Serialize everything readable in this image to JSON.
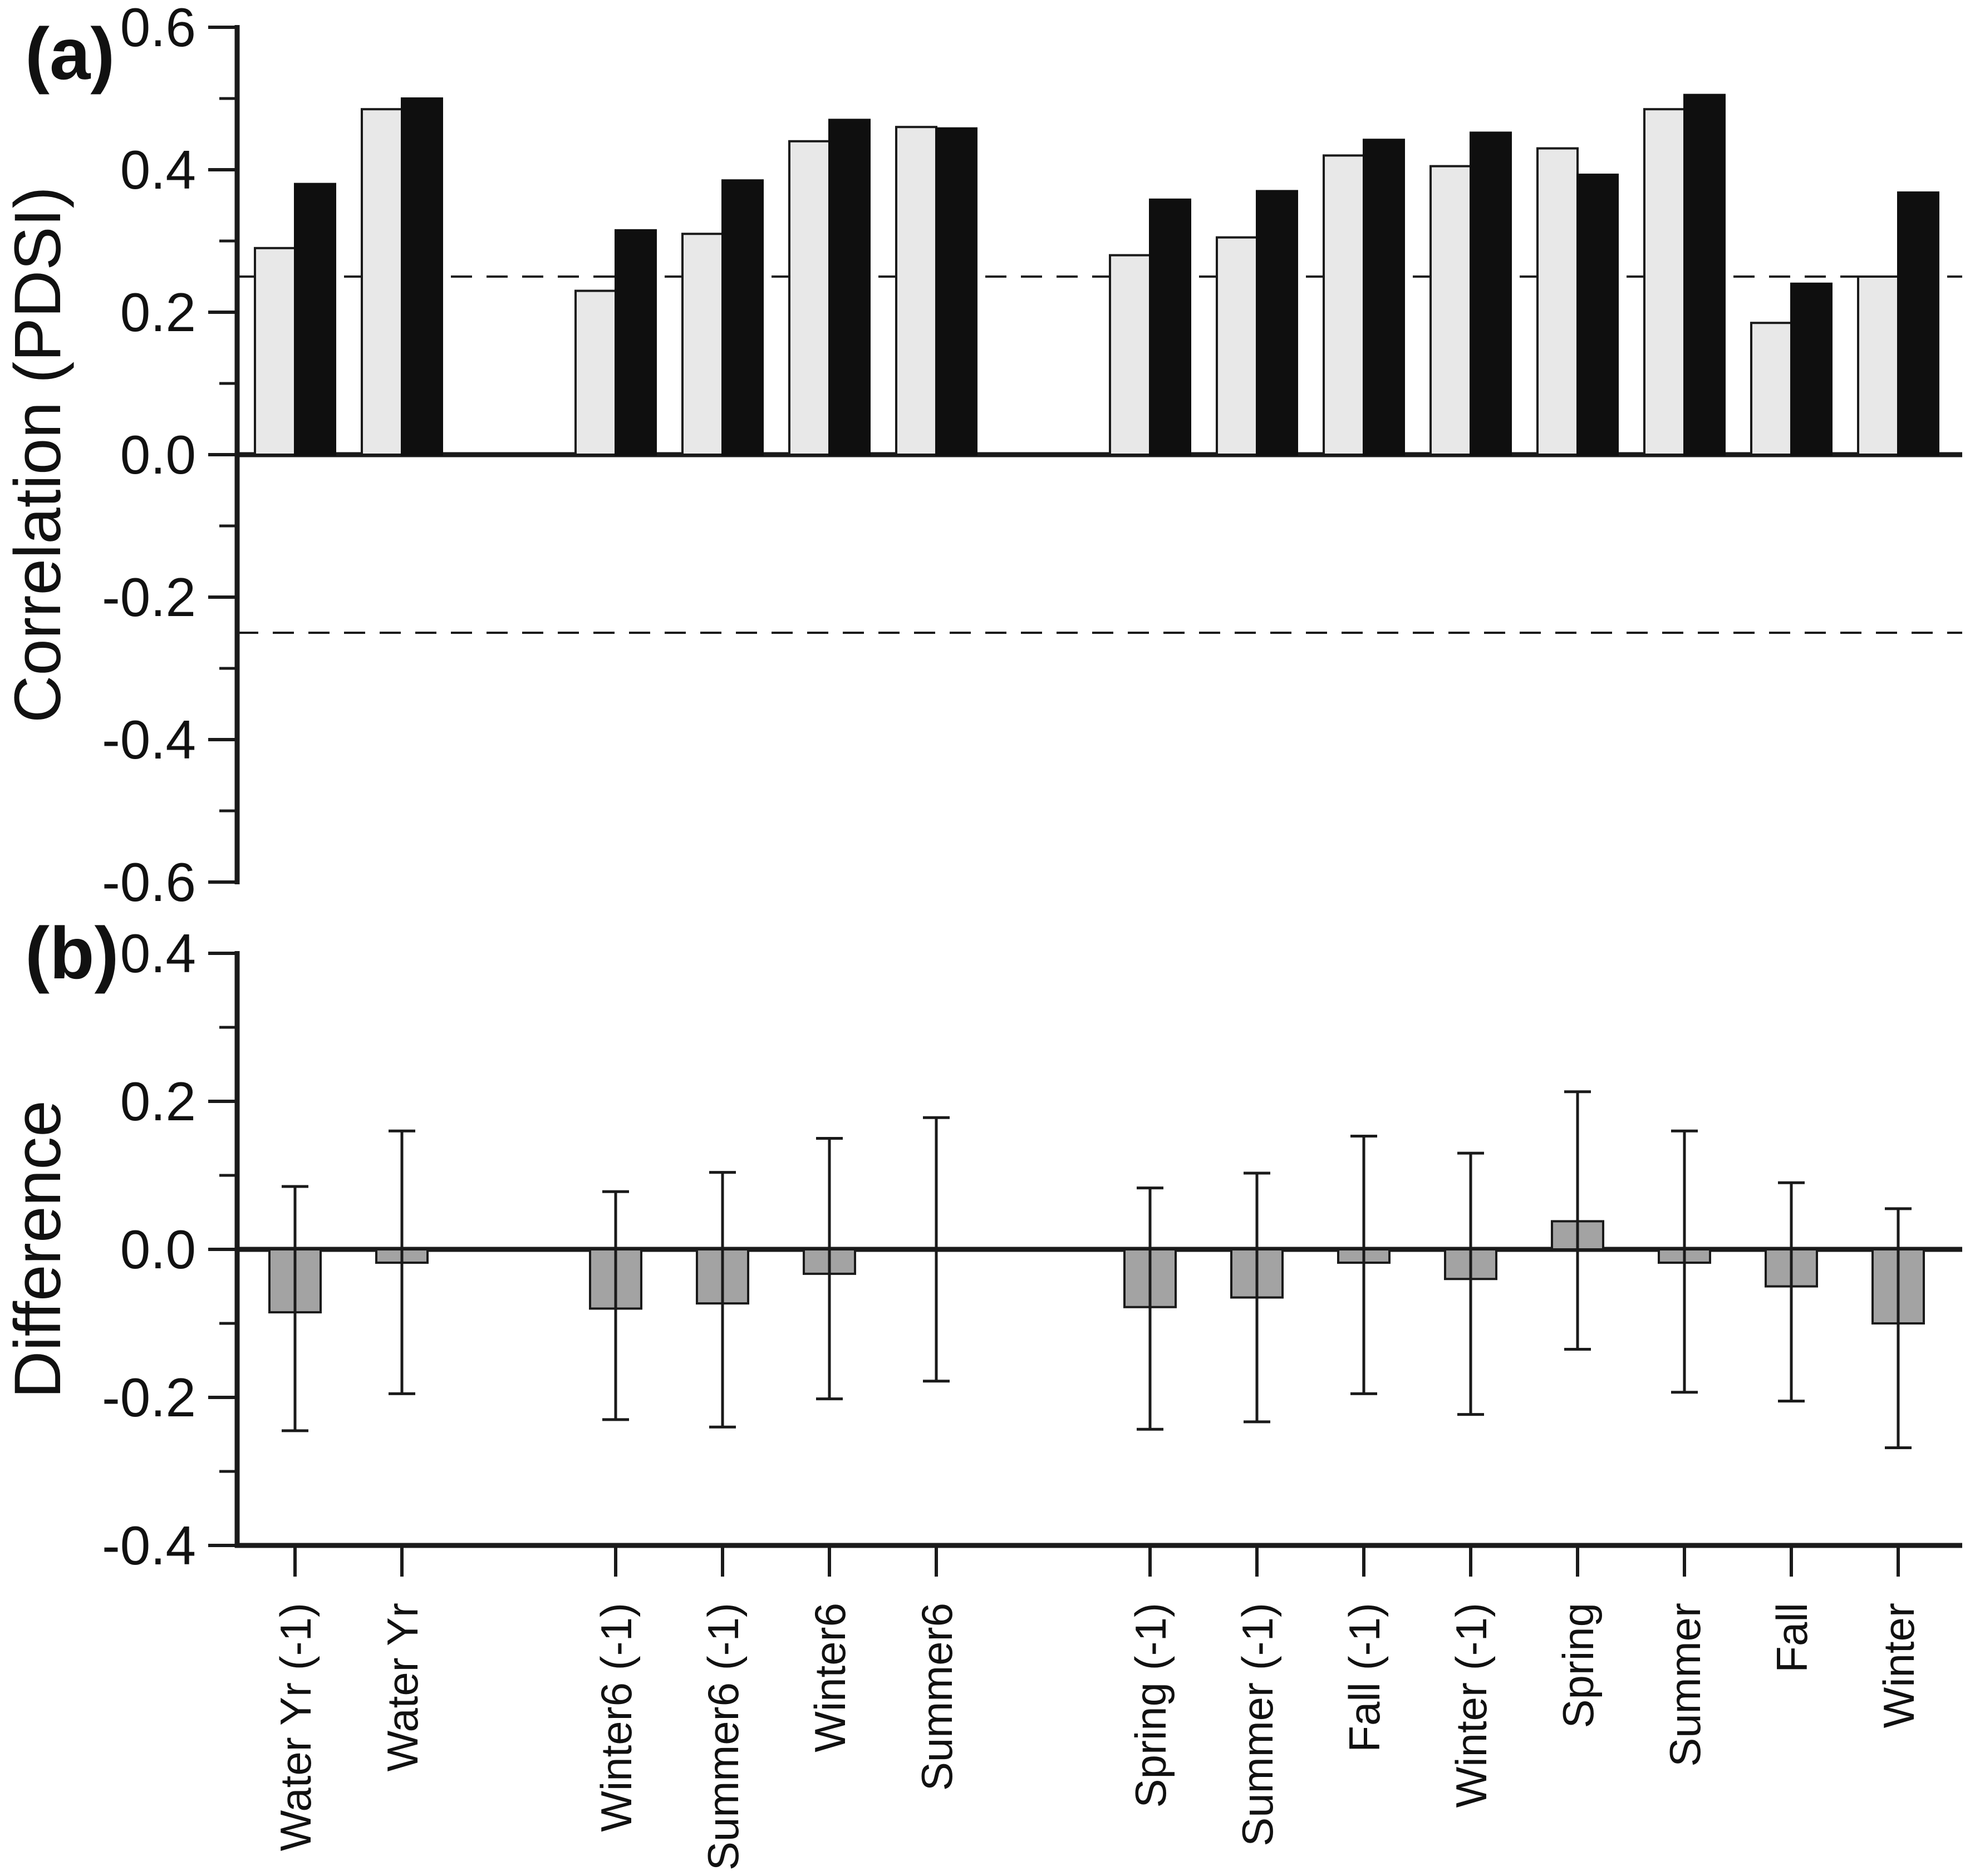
{
  "figure": {
    "panel_a_label": "(a)",
    "panel_b_label": "(b)",
    "colors": {
      "background": "#ffffff",
      "light_bar_fill": "#e8e8e8",
      "dark_bar_fill": "#0f0f0f",
      "diff_bar_fill": "#a3a3a3",
      "line_color": "#1a1a1a"
    }
  },
  "chart_data": [
    {
      "type": "bar",
      "panel": "a",
      "title": "",
      "xlabel": "",
      "ylabel": "Correlation (PDSI)",
      "ylim": [
        -0.6,
        0.6
      ],
      "yticks_major": [
        0.6,
        0.4,
        0.2,
        0.0,
        -0.2,
        -0.4,
        -0.6
      ],
      "yticks_minor": [
        0.5,
        0.3,
        0.1,
        -0.1,
        -0.3,
        -0.5
      ],
      "significance_levels": [
        0.25,
        -0.25
      ],
      "grid": false,
      "legend_position": "none",
      "group_sizes": [
        2,
        4,
        8
      ],
      "categories": [
        "Water Yr (-1)",
        "Water Yr",
        "Winter6 (-1)",
        "Summer6 (-1)",
        "Winter6",
        "Summer6",
        "Spring (-1)",
        "Summer (-1)",
        "Fall (-1)",
        "Winter (-1)",
        "Spring",
        "Summer",
        "Fall",
        "Winter"
      ],
      "series": [
        {
          "name": "light-gray",
          "values": [
            0.29,
            0.485,
            0.23,
            0.31,
            0.44,
            0.46,
            0.28,
            0.305,
            0.42,
            0.405,
            0.43,
            0.485,
            0.185,
            0.25
          ]
        },
        {
          "name": "black",
          "values": [
            0.38,
            0.5,
            0.315,
            0.385,
            0.47,
            0.458,
            0.358,
            0.37,
            0.442,
            0.452,
            0.393,
            0.505,
            0.24,
            0.368
          ]
        }
      ]
    },
    {
      "type": "bar",
      "panel": "b",
      "title": "",
      "xlabel": "",
      "ylabel": "Difference",
      "ylim": [
        -0.4,
        0.4
      ],
      "yticks_major": [
        0.4,
        0.2,
        0.0,
        -0.2,
        -0.4
      ],
      "yticks_minor": [
        0.3,
        0.1,
        -0.1,
        -0.3
      ],
      "grid": false,
      "legend_position": "none",
      "group_sizes": [
        2,
        4,
        8
      ],
      "categories": [
        "Water Yr (-1)",
        "Water Yr",
        "Winter6 (-1)",
        "Summer6 (-1)",
        "Winter6",
        "Summer6",
        "Spring (-1)",
        "Summer (-1)",
        "Fall (-1)",
        "Winter (-1)",
        "Spring",
        "Summer",
        "Fall",
        "Winter"
      ],
      "series": [
        {
          "name": "difference",
          "values": [
            -0.085,
            -0.018,
            -0.08,
            -0.073,
            -0.033,
            0.0,
            -0.078,
            -0.065,
            -0.018,
            -0.04,
            0.038,
            -0.018,
            -0.05,
            -0.1
          ]
        }
      ],
      "error_bars": {
        "upper": [
          0.085,
          0.16,
          0.078,
          0.104,
          0.15,
          0.178,
          0.083,
          0.103,
          0.153,
          0.13,
          0.213,
          0.16,
          0.09,
          0.055
        ],
        "lower": [
          -0.245,
          -0.195,
          -0.23,
          -0.24,
          -0.202,
          -0.178,
          -0.243,
          -0.233,
          -0.195,
          -0.223,
          -0.135,
          -0.193,
          -0.205,
          -0.268
        ]
      }
    }
  ]
}
